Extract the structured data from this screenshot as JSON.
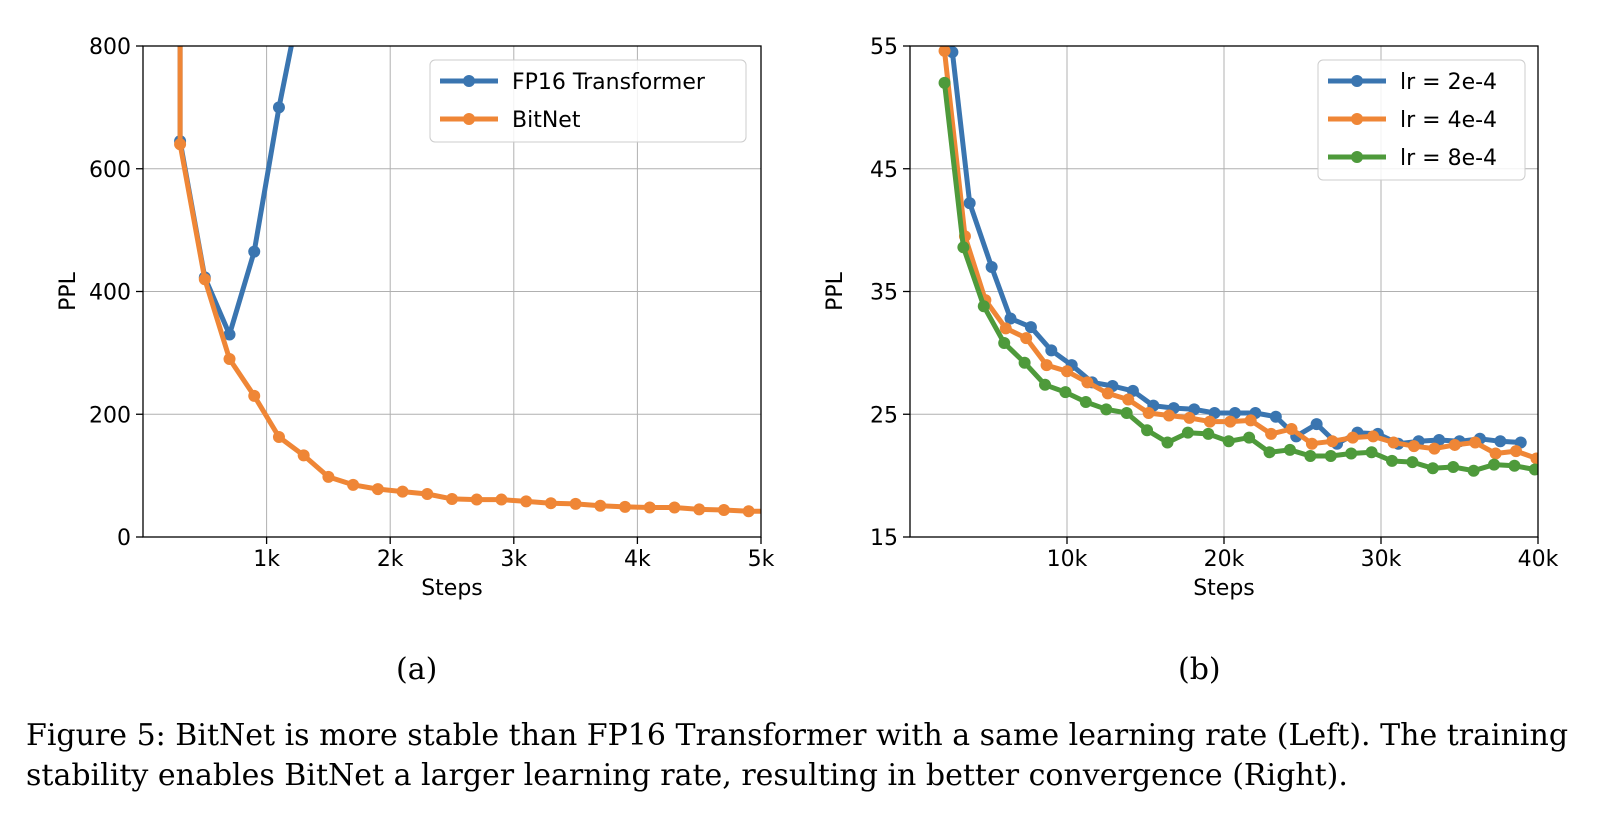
{
  "chart_data": [
    {
      "type": "line",
      "panel_label": "(a)",
      "xlabel": "Steps",
      "ylabel": "PPL",
      "xlim": [
        0,
        5000
      ],
      "ylim": [
        0,
        800
      ],
      "xticks": [
        1000,
        2000,
        3000,
        4000,
        5000
      ],
      "xtick_labels": [
        "1k",
        "2k",
        "3k",
        "4k",
        "5k"
      ],
      "yticks": [
        0,
        200,
        400,
        600,
        800
      ],
      "ytick_labels": [
        "0",
        "200",
        "400",
        "600",
        "800"
      ],
      "grid": true,
      "legend_position": "top-right",
      "series": [
        {
          "name": "FP16 Transformer",
          "color": "#3a75b0",
          "x": [
            300,
            300,
            500,
            700,
            900,
            1100,
            1200
          ],
          "y": [
            800,
            645,
            423,
            330,
            465,
            700,
            800
          ],
          "markers": [
            false,
            true,
            true,
            true,
            true,
            true,
            false
          ]
        },
        {
          "name": "BitNet",
          "color": "#ef8636",
          "x": [
            300,
            300,
            500,
            700,
            900,
            1100,
            1300,
            1500,
            1700,
            1900,
            2100,
            2300,
            2500,
            2700,
            2900,
            3100,
            3300,
            3500,
            3700,
            3900,
            4100,
            4300,
            4500,
            4700,
            4900,
            5000
          ],
          "y": [
            800,
            640,
            420,
            290,
            230,
            163,
            133,
            98,
            85,
            78,
            74,
            70,
            62,
            61,
            61,
            58,
            55,
            54,
            51,
            49,
            48,
            48,
            45,
            44,
            42,
            42
          ],
          "markers": [
            false,
            true,
            true,
            true,
            true,
            true,
            true,
            true,
            true,
            true,
            true,
            true,
            true,
            true,
            true,
            true,
            true,
            true,
            true,
            true,
            true,
            true,
            true,
            true,
            true,
            false
          ]
        }
      ]
    },
    {
      "type": "line",
      "panel_label": "(b)",
      "xlabel": "Steps",
      "ylabel": "PPL",
      "xlim": [
        0,
        40000
      ],
      "ylim": [
        15,
        55
      ],
      "xticks": [
        10000,
        20000,
        30000,
        40000
      ],
      "xtick_labels": [
        "10k",
        "20k",
        "30k",
        "40k"
      ],
      "yticks": [
        15,
        25,
        35,
        45,
        55
      ],
      "ytick_labels": [
        "15",
        "25",
        "35",
        "45",
        "55"
      ],
      "grid": true,
      "legend_position": "top-right",
      "series": [
        {
          "name": "lr = 2e-4",
          "color": "#3a75b0",
          "x": [
            2200,
            2700,
            3800,
            5200,
            6400,
            7700,
            9000,
            10300,
            11600,
            12900,
            14200,
            15500,
            16800,
            18100,
            19400,
            20700,
            22000,
            23300,
            24600,
            25900,
            27200,
            28500,
            29800,
            31100,
            32400,
            33700,
            35000,
            36300,
            37600,
            38900
          ],
          "y": [
            55,
            54.5,
            42.2,
            37,
            32.8,
            32.1,
            30.2,
            29,
            27.6,
            27.3,
            26.9,
            25.7,
            25.5,
            25.4,
            25.1,
            25.1,
            25.1,
            24.8,
            23.2,
            24.2,
            22.6,
            23.5,
            23.4,
            22.6,
            22.8,
            22.9,
            22.8,
            23,
            22.8,
            22.7
          ],
          "markers": [
            false,
            true,
            true,
            true,
            true,
            true,
            true,
            true,
            true,
            true,
            true,
            true,
            true,
            true,
            true,
            true,
            true,
            true,
            true,
            true,
            true,
            true,
            true,
            true,
            true,
            true,
            true,
            true,
            true,
            true
          ]
        },
        {
          "name": "lr = 4e-4",
          "color": "#ef8636",
          "x": [
            2100,
            2200,
            3500,
            4800,
            6100,
            7400,
            8700,
            10000,
            11300,
            12600,
            13900,
            15200,
            16500,
            17800,
            19100,
            20400,
            21700,
            23000,
            24300,
            25600,
            26900,
            28200,
            29500,
            30800,
            32100,
            33400,
            34700,
            36000,
            37300,
            38600,
            39900
          ],
          "y": [
            55,
            54.6,
            39.5,
            34.3,
            32,
            31.2,
            29,
            28.5,
            27.6,
            26.7,
            26.2,
            25.1,
            24.9,
            24.7,
            24.4,
            24.4,
            24.5,
            23.4,
            23.8,
            22.6,
            22.8,
            23.1,
            23.2,
            22.7,
            22.4,
            22.2,
            22.5,
            22.7,
            21.8,
            22,
            21.4
          ],
          "markers": [
            false,
            true,
            true,
            true,
            true,
            true,
            true,
            true,
            true,
            true,
            true,
            true,
            true,
            true,
            true,
            true,
            true,
            true,
            true,
            true,
            true,
            true,
            true,
            true,
            true,
            true,
            true,
            true,
            true,
            true,
            true
          ]
        },
        {
          "name": "lr = 8e-4",
          "color": "#4e9a3b",
          "x": [
            2200,
            3400,
            4700,
            6000,
            7300,
            8600,
            9900,
            11200,
            12500,
            13800,
            15100,
            16400,
            17700,
            19000,
            20300,
            21600,
            22900,
            24200,
            25500,
            26800,
            28100,
            29400,
            30700,
            32000,
            33300,
            34600,
            35900,
            37200,
            38500,
            39800
          ],
          "y": [
            52,
            38.6,
            33.8,
            30.8,
            29.2,
            27.4,
            26.8,
            26,
            25.4,
            25.1,
            23.7,
            22.7,
            23.5,
            23.4,
            22.8,
            23.1,
            21.9,
            22.1,
            21.6,
            21.6,
            21.8,
            21.9,
            21.2,
            21.1,
            20.6,
            20.7,
            20.4,
            20.9,
            20.8,
            20.5
          ],
          "markers": [
            true,
            true,
            true,
            true,
            true,
            true,
            true,
            true,
            true,
            true,
            true,
            true,
            true,
            true,
            true,
            true,
            true,
            true,
            true,
            true,
            true,
            true,
            true,
            true,
            true,
            true,
            true,
            true,
            true,
            true
          ]
        }
      ]
    }
  ],
  "caption": "Figure 5: BitNet is more stable than FP16 Transformer with a same learning rate (Left). The training stability enables BitNet a larger learning rate, resulting in better convergence (Right)."
}
